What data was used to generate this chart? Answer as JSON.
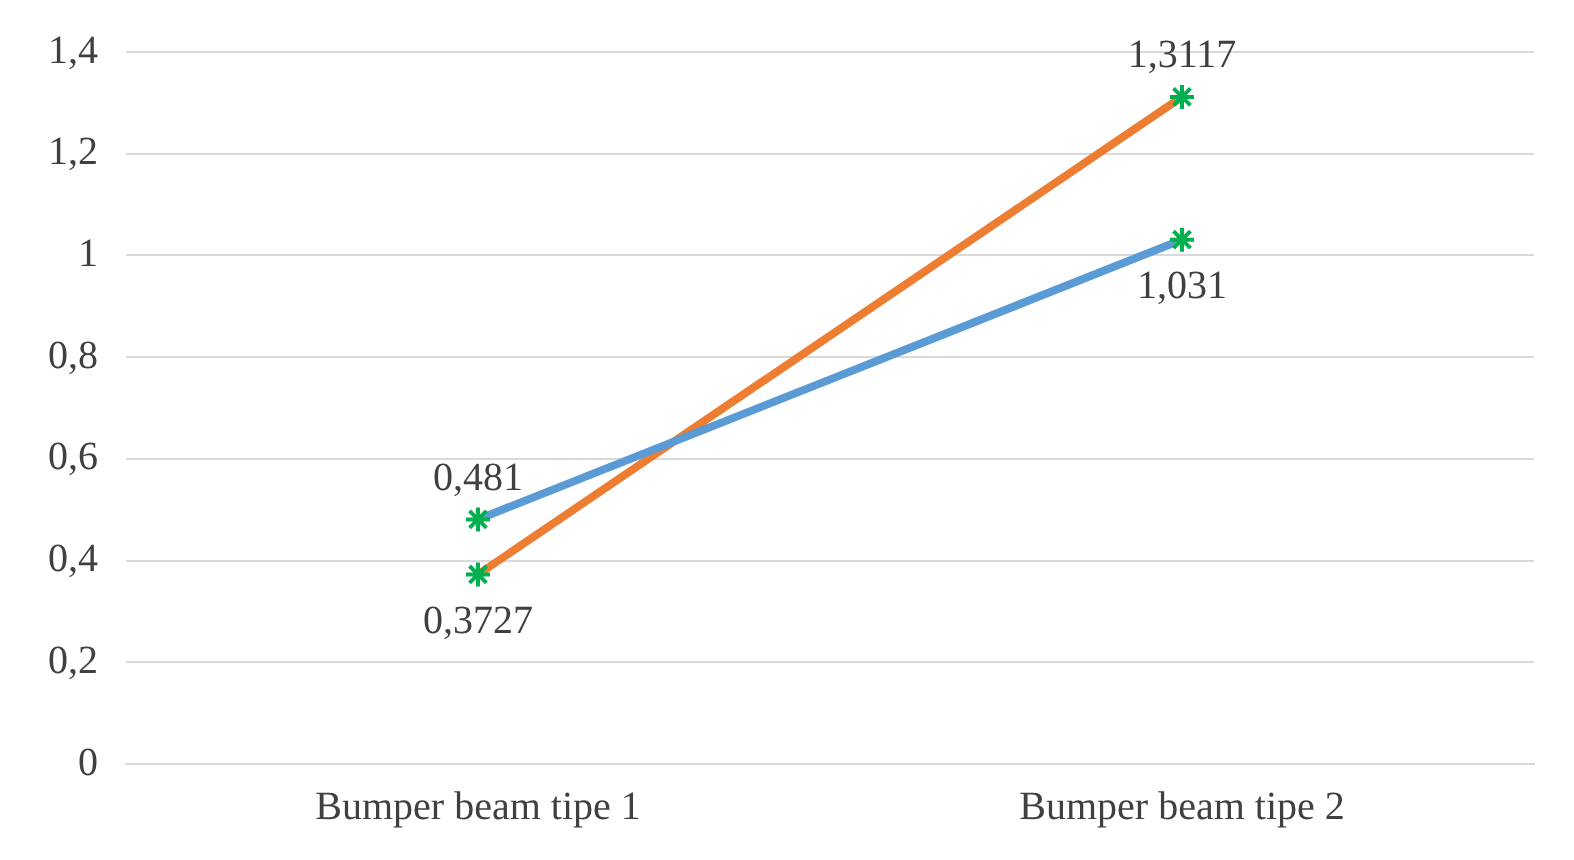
{
  "chart_data": {
    "type": "line",
    "categories": [
      "Bumper beam tipe 1",
      "Bumper beam tipe 2"
    ],
    "series": [
      {
        "color": "#5b9bd5",
        "values": [
          0.481,
          1.031
        ],
        "value_labels": [
          "0,481",
          "1,031"
        ]
      },
      {
        "color": "#ed7d31",
        "values": [
          0.3727,
          1.3117
        ],
        "value_labels": [
          "0,3727",
          "1,3117"
        ]
      }
    ],
    "ylim": [
      0,
      1.4
    ],
    "yticks": [
      0,
      {
        "value": 0.2,
        "label": "0,2"
      },
      {
        "value": 0.4,
        "label": "0,4"
      },
      {
        "value": 0.6,
        "label": "0,6"
      },
      {
        "value": 0.8,
        "label": "0,8"
      },
      1,
      {
        "value": 1.2,
        "label": "1,2"
      },
      {
        "value": 1.4,
        "label": "1,4"
      }
    ],
    "grid": "y",
    "legend": false,
    "marker": "cross",
    "line_style": "solid"
  }
}
